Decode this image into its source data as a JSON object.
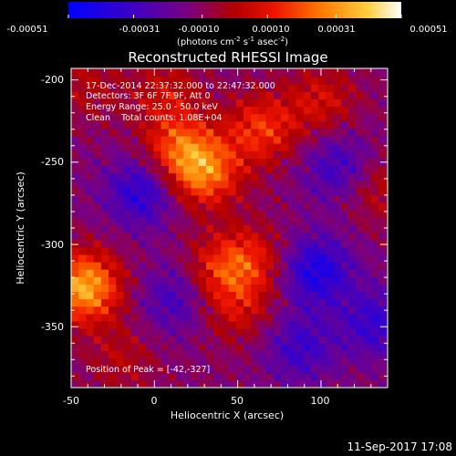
{
  "colorbar": {
    "ticks": [
      "-0.00051",
      "-0.00031",
      "-0.00010",
      "0.00010",
      "0.00031",
      "0.00051"
    ],
    "units_text": "(photons cm",
    "units_exp1": "-2",
    "units_mid": " s",
    "units_exp2": "-1",
    "units_tail": " asec",
    "units_exp3": "-2",
    "units_close": ")",
    "range": [
      -0.00051,
      0.00051
    ]
  },
  "annotations": {
    "time_range": "17-Dec-2014 22:37:32.000 to 22:47:32.000",
    "detectors": "Detectors: 3F 6F 7F 9F, Att 0",
    "energy_range": "Energy Range: 25.0 - 50.0 keV",
    "clean": "Clean    Total counts: 1.08E+04",
    "peak": "Position of Peak = [-42,-327]"
  },
  "footer": {
    "timestamp": "11-Sep-2017 17:08"
  },
  "chart_data": {
    "type": "heatmap",
    "title": "Reconstructed RHESSI Image",
    "xlabel": "Heliocentric X (arcsec)",
    "ylabel": "Heliocentric Y (arcsec)",
    "xlim": [
      -50,
      140
    ],
    "ylim": [
      -387,
      -193
    ],
    "xticks": [
      -50,
      0,
      50,
      100
    ],
    "yticks": [
      -200,
      -250,
      -300,
      -350
    ],
    "xtick_labels": [
      "-50",
      "0",
      "50",
      "100"
    ],
    "ytick_labels": [
      "-200",
      "-250",
      "-300",
      "-350"
    ],
    "peak": [
      -42,
      -327
    ],
    "colormap": "red-temperature",
    "emission_sources": [
      {
        "x": -44,
        "y": -328,
        "amplitude": 0.00047
      },
      {
        "x": 28,
        "y": -258,
        "amplitude": 0.00036
      },
      {
        "x": 12,
        "y": -243,
        "amplitude": 0.00028
      },
      {
        "x": 62,
        "y": -232,
        "amplitude": 0.00027
      },
      {
        "x": 98,
        "y": -215,
        "amplitude": 0.00018
      },
      {
        "x": 55,
        "y": -312,
        "amplitude": 0.00022
      },
      {
        "x": 36,
        "y": -318,
        "amplitude": 0.0002
      },
      {
        "x": 48,
        "y": -342,
        "amplitude": 0.00015
      },
      {
        "x": -22,
        "y": -372,
        "amplitude": 0.00012
      },
      {
        "x": 132,
        "y": -268,
        "amplitude": 0.00014
      },
      {
        "x": 5,
        "y": -210,
        "amplitude": 0.00016
      },
      {
        "x": -42,
        "y": -205,
        "amplitude": 0.00012
      }
    ],
    "negative_regions": [
      {
        "x": -10,
        "y": -270,
        "amplitude": -0.00026
      },
      {
        "x": 95,
        "y": -318,
        "amplitude": -0.0003
      },
      {
        "x": 108,
        "y": -255,
        "amplitude": -0.0002
      },
      {
        "x": 10,
        "y": -335,
        "amplitude": -0.00018
      },
      {
        "x": 85,
        "y": -365,
        "amplitude": -0.0002
      },
      {
        "x": 130,
        "y": -350,
        "amplitude": -0.00022
      }
    ]
  }
}
